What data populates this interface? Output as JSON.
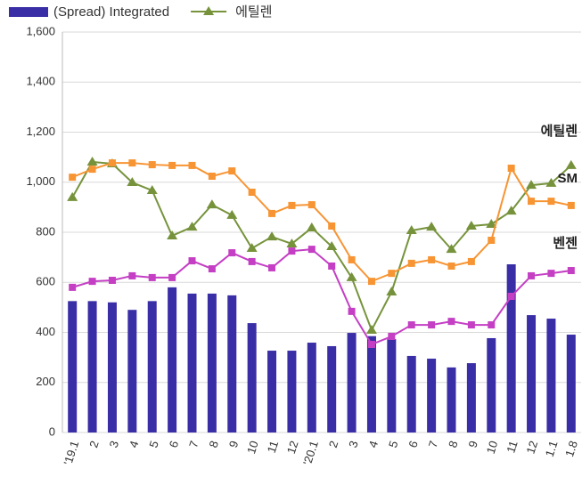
{
  "chart_data": {
    "type": "bar_line",
    "categories": [
      "'19.1",
      "2",
      "3",
      "4",
      "5",
      "6",
      "7",
      "8",
      "9",
      "10",
      "11",
      "12",
      "'20.1",
      "2",
      "3",
      "4",
      "5",
      "6",
      "7",
      "8",
      "9",
      "10",
      "11",
      "12",
      "1.1",
      "1.8"
    ],
    "ylim": [
      0,
      1600
    ],
    "yticks": [
      0,
      200,
      400,
      600,
      800,
      {
        "value": 1000,
        "label": "1,000"
      },
      {
        "value": 1200,
        "label": "1,200"
      },
      {
        "value": 1400,
        "label": "1,400"
      },
      {
        "value": 1600,
        "label": "1,600"
      }
    ],
    "grid": true,
    "series": [
      {
        "name": "(Spread) Integrated",
        "kind": "bar",
        "color": "#3a2ea6",
        "values": [
          525,
          525,
          520,
          490,
          525,
          580,
          555,
          555,
          548,
          437,
          327,
          327,
          359,
          345,
          398,
          385,
          373,
          306,
          295,
          260,
          277,
          377,
          672,
          469,
          455,
          391
        ]
      },
      {
        "name": "에틸렌",
        "end_label": "에틸렌",
        "kind": "line",
        "marker": "triangle",
        "color": "#76933c",
        "values": [
          939,
          1081,
          1074,
          999,
          967,
          786,
          821,
          910,
          868,
          736,
          782,
          754,
          818,
          743,
          619,
          409,
          562,
          807,
          821,
          732,
          825,
          832,
          885,
          988,
          996,
          1067
        ]
      },
      {
        "end_label": "SM",
        "kind": "line",
        "marker": "square",
        "color": "#f79433",
        "values": [
          1020,
          1052,
          1077,
          1077,
          1070,
          1067,
          1067,
          1024,
          1045,
          960,
          875,
          907,
          910,
          825,
          690,
          604,
          636,
          676,
          690,
          665,
          683,
          768,
          1056,
          924,
          924,
          907
        ]
      },
      {
        "end_label": "벤젠",
        "kind": "line",
        "marker": "square",
        "color": "#c43fc4",
        "values": [
          580,
          604,
          608,
          626,
          619,
          619,
          686,
          654,
          718,
          683,
          658,
          725,
          732,
          665,
          484,
          352,
          384,
          430,
          430,
          444,
          430,
          430,
          544,
          626,
          636,
          647
        ]
      }
    ]
  }
}
